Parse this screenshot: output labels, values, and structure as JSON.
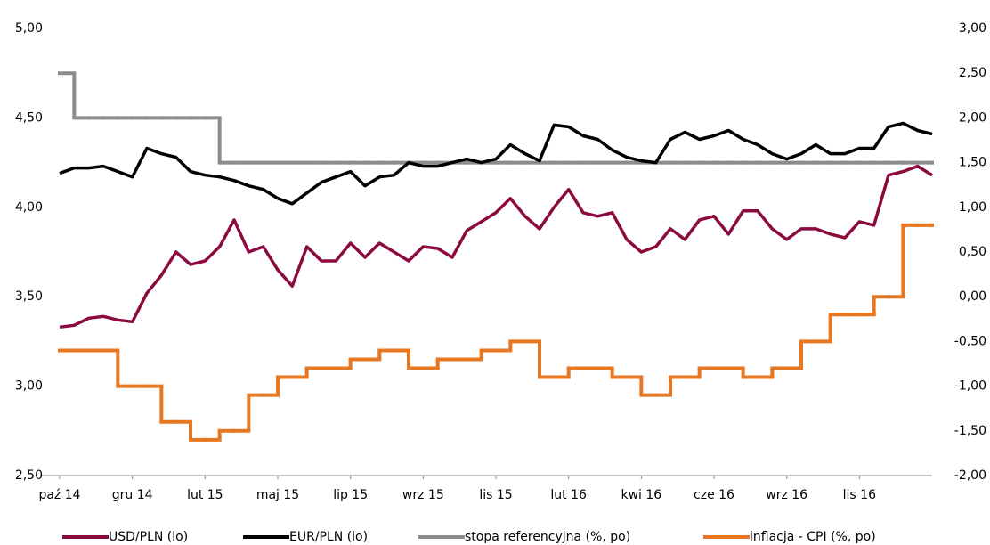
{
  "chart_data": {
    "type": "line",
    "categories": [
      "paź 14",
      null,
      null,
      null,
      null,
      "gru 14",
      null,
      null,
      null,
      null,
      "lut 15",
      null,
      null,
      null,
      null,
      "maj 15",
      null,
      null,
      null,
      null,
      "lip 15",
      null,
      null,
      null,
      null,
      "wrz 15",
      null,
      null,
      null,
      null,
      "lis 15",
      null,
      null,
      null,
      null,
      "lut 16",
      null,
      null,
      null,
      null,
      "kwi 16",
      null,
      null,
      null,
      null,
      "cze 16",
      null,
      null,
      null,
      null,
      "wrz 16",
      null,
      null,
      null,
      null,
      "lis 16",
      null,
      null,
      null,
      null,
      null
    ],
    "series": [
      {
        "name": "USD/PLN (lo)",
        "color": "#8b0a3f",
        "axis": "y",
        "values": [
          3.33,
          3.34,
          3.38,
          3.39,
          3.37,
          3.36,
          3.52,
          3.62,
          3.75,
          3.68,
          3.7,
          3.78,
          3.93,
          3.75,
          3.78,
          3.65,
          3.56,
          3.78,
          3.7,
          3.7,
          3.8,
          3.72,
          3.8,
          3.75,
          3.7,
          3.78,
          3.77,
          3.72,
          3.87,
          3.92,
          3.97,
          4.05,
          3.95,
          3.88,
          4.0,
          4.1,
          3.97,
          3.95,
          3.97,
          3.82,
          3.75,
          3.78,
          3.88,
          3.82,
          3.93,
          3.95,
          3.85,
          3.98,
          3.98,
          3.88,
          3.82,
          3.88,
          3.88,
          3.85,
          3.83,
          3.92,
          3.9,
          4.18,
          4.2,
          4.23,
          4.18
        ]
      },
      {
        "name": "EUR/PLN (lo)",
        "color": "#000000",
        "axis": "y",
        "values": [
          4.19,
          4.22,
          4.22,
          4.23,
          4.2,
          4.17,
          4.33,
          4.3,
          4.28,
          4.2,
          4.18,
          4.17,
          4.15,
          4.12,
          4.1,
          4.05,
          4.02,
          4.08,
          4.14,
          4.17,
          4.2,
          4.12,
          4.17,
          4.18,
          4.25,
          4.23,
          4.23,
          4.25,
          4.27,
          4.25,
          4.27,
          4.35,
          4.3,
          4.26,
          4.46,
          4.45,
          4.4,
          4.38,
          4.32,
          4.28,
          4.26,
          4.25,
          4.38,
          4.42,
          4.38,
          4.4,
          4.43,
          4.38,
          4.35,
          4.3,
          4.27,
          4.3,
          4.35,
          4.3,
          4.3,
          4.33,
          4.33,
          4.45,
          4.47,
          4.43,
          4.41
        ]
      },
      {
        "name": "stopa referencyjna (%, po)",
        "color": "#8c8c8c",
        "axis": "y2",
        "step": true,
        "values": [
          2.5,
          2.0,
          2.0,
          2.0,
          2.0,
          2.0,
          2.0,
          2.0,
          2.0,
          2.0,
          2.0,
          1.5,
          1.5,
          1.5,
          1.5,
          1.5,
          1.5,
          1.5,
          1.5,
          1.5,
          1.5,
          1.5,
          1.5,
          1.5,
          1.5,
          1.5,
          1.5,
          1.5,
          1.5,
          1.5,
          1.5,
          1.5,
          1.5,
          1.5,
          1.5,
          1.5,
          1.5,
          1.5,
          1.5,
          1.5,
          1.5,
          1.5,
          1.5,
          1.5,
          1.5,
          1.5,
          1.5,
          1.5,
          1.5,
          1.5,
          1.5,
          1.5,
          1.5,
          1.5,
          1.5,
          1.5,
          1.5,
          1.5,
          1.5,
          1.5,
          1.5
        ]
      },
      {
        "name": "inflacja - CPI (%, po)",
        "color": "#e87722",
        "axis": "y2",
        "step": true,
        "values": [
          -0.6,
          -0.6,
          -0.6,
          -0.6,
          -1.0,
          -1.0,
          -1.0,
          -1.4,
          -1.4,
          -1.6,
          -1.6,
          -1.5,
          -1.5,
          -1.1,
          -1.1,
          -0.9,
          -0.9,
          -0.8,
          -0.8,
          -0.8,
          -0.7,
          -0.7,
          -0.6,
          -0.6,
          -0.8,
          -0.8,
          -0.7,
          -0.7,
          -0.7,
          -0.6,
          -0.6,
          -0.5,
          -0.5,
          -0.9,
          -0.9,
          -0.8,
          -0.8,
          -0.8,
          -0.9,
          -0.9,
          -1.1,
          -1.1,
          -0.9,
          -0.9,
          -0.8,
          -0.8,
          -0.8,
          -0.9,
          -0.9,
          -0.8,
          -0.8,
          -0.5,
          -0.5,
          -0.2,
          -0.2,
          -0.2,
          0.0,
          0.0,
          0.8,
          0.8,
          0.8
        ]
      }
    ],
    "ylim": [
      2.5,
      5.0
    ],
    "yticks": [
      {
        "value": 2.5,
        "label": "2,50"
      },
      {
        "value": 3.0,
        "label": "3,00"
      },
      {
        "value": 3.5,
        "label": "3,50"
      },
      {
        "value": 4.0,
        "label": "4,00"
      },
      {
        "value": 4.5,
        "label": "4,50"
      },
      {
        "value": 5.0,
        "label": "5,00"
      }
    ],
    "y2lim": [
      -2.0,
      3.0
    ],
    "y2ticks": [
      {
        "value": -2.0,
        "label": "-2,00"
      },
      {
        "value": -1.5,
        "label": "-1,50"
      },
      {
        "value": -1.0,
        "label": "-1,00"
      },
      {
        "value": -0.5,
        "label": "-0,50"
      },
      {
        "value": 0.0,
        "label": "0,00"
      },
      {
        "value": 0.5,
        "label": "0,50"
      },
      {
        "value": 1.0,
        "label": "1,00"
      },
      {
        "value": 1.5,
        "label": "1,50"
      },
      {
        "value": 2.0,
        "label": "2,00"
      },
      {
        "value": 2.5,
        "label": "2,50"
      },
      {
        "value": 3.0,
        "label": "3,00"
      }
    ],
    "grid": false,
    "legend": "bottom"
  }
}
